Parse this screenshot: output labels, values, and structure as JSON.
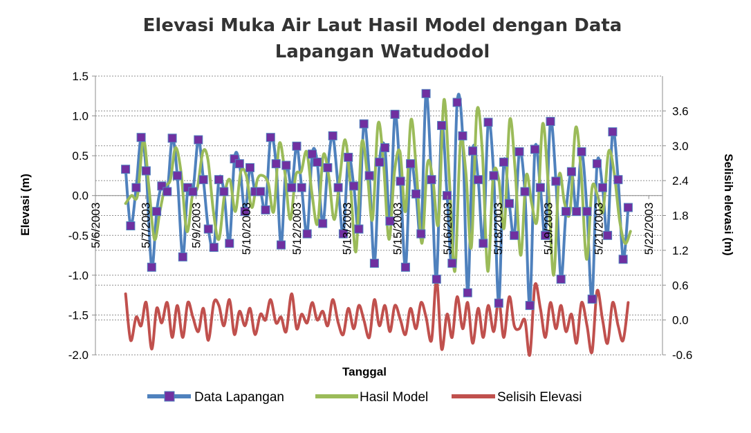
{
  "chart_data": {
    "type": "line",
    "title_lines": [
      "Elevasi Muka Air Laut Hasil Model dengan Data",
      "Lapangan Watudodol"
    ],
    "xlabel": "Tanggal",
    "ylabel": "Elevasi (m)",
    "y2label": "Selisih elevasi (m)",
    "ylim": [
      -2.0,
      1.5
    ],
    "y_ticks": [
      "-2.0",
      "-1.5",
      "-1.0",
      "-0.5",
      "0.0",
      "0.5",
      "1.0",
      "1.5"
    ],
    "y2lim": [
      -0.6,
      4.2
    ],
    "y2_ticks": [
      "-0.6",
      "0.0",
      "0.6",
      "1.2",
      "1.8",
      "2.4",
      "3.0",
      "3.6"
    ],
    "x_tick_labels": [
      "5/6/2003",
      "5/7/2003",
      "5/9/2003",
      "5/10/2003",
      "5/12/2003",
      "5/13/2003",
      "5/15/2003",
      "5/16/2003",
      "5/18/2003",
      "5/19/2003",
      "5/21/2003",
      "5/22/2003"
    ],
    "x_tick_days": [
      6,
      7.1,
      8.2,
      9.3,
      10.4,
      11.5,
      12.6,
      13.7,
      14.8,
      15.9,
      17.0,
      18.1
    ],
    "grid": true,
    "legend_position": "bottom",
    "colors": {
      "data_lapangan": "#4f81bd",
      "marker": "#7030a0",
      "hasil_model": "#9bbb59",
      "selisih": "#c0504d"
    },
    "series": [
      {
        "name": "Data Lapangan",
        "axis": "left",
        "x": [
          6.66,
          6.77,
          6.89,
          7.0,
          7.11,
          7.23,
          7.34,
          7.45,
          7.57,
          7.68,
          7.79,
          7.91,
          8.02,
          8.13,
          8.25,
          8.36,
          8.47,
          8.59,
          8.7,
          8.81,
          8.93,
          9.04,
          9.15,
          9.27,
          9.38,
          9.49,
          9.61,
          9.72,
          9.83,
          9.95,
          10.06,
          10.17,
          10.29,
          10.4,
          10.51,
          10.63,
          10.74,
          10.85,
          10.97,
          11.08,
          11.19,
          11.31,
          11.42,
          11.53,
          11.65,
          11.76,
          11.87,
          11.99,
          12.1,
          12.21,
          12.33,
          12.44,
          12.55,
          12.67,
          12.78,
          12.89,
          13.01,
          13.12,
          13.23,
          13.35,
          13.46,
          13.57,
          13.69,
          13.8,
          13.91,
          14.03,
          14.14,
          14.25,
          14.37,
          14.48,
          14.59,
          14.71,
          14.82,
          14.93,
          15.05,
          15.16,
          15.27,
          15.39,
          15.5,
          15.61,
          15.73,
          15.84,
          15.95,
          16.07,
          16.18,
          16.29,
          16.41,
          16.52,
          16.63,
          16.75,
          16.86,
          16.97,
          17.09,
          17.2,
          17.31,
          17.43,
          17.54,
          17.65
        ],
        "values": [
          0.33,
          -0.38,
          0.1,
          0.73,
          0.31,
          -0.9,
          -0.2,
          0.12,
          0.05,
          0.72,
          0.25,
          -0.77,
          0.1,
          0.05,
          0.7,
          0.2,
          -0.42,
          -0.65,
          0.2,
          0.05,
          -0.6,
          0.46,
          0.4,
          -0.2,
          0.35,
          0.05,
          0.05,
          -0.18,
          0.73,
          0.4,
          -0.62,
          0.38,
          0.1,
          0.62,
          0.1,
          -0.48,
          0.52,
          0.42,
          -0.35,
          0.35,
          0.75,
          0.1,
          -0.48,
          0.48,
          0.12,
          -0.42,
          0.9,
          0.25,
          -0.85,
          0.42,
          0.6,
          -0.32,
          1.02,
          0.18,
          -0.9,
          0.4,
          0.02,
          -0.48,
          1.28,
          0.2,
          -1.05,
          0.88,
          0.0,
          -0.85,
          1.17,
          0.75,
          -1.22,
          0.56,
          0.2,
          -0.6,
          0.92,
          0.25,
          -1.35,
          0.42,
          -0.1,
          -0.5,
          0.55,
          0.05,
          -1.38,
          0.58,
          0.1,
          -0.5,
          0.93,
          0.18,
          -1.05,
          -0.2,
          0.3,
          -0.2,
          0.55,
          -0.2,
          -1.3,
          0.4,
          0.1,
          -0.5,
          0.8,
          0.2,
          -0.8,
          -0.15
        ]
      },
      {
        "name": "Hasil Model",
        "axis": "left",
        "x": [
          6.66,
          6.79,
          6.92,
          7.05,
          7.17,
          7.29,
          7.41,
          7.52,
          7.64,
          7.75,
          7.87,
          8.0,
          8.12,
          8.23,
          8.35,
          8.46,
          8.58,
          8.7,
          8.82,
          8.94,
          9.06,
          9.18,
          9.3,
          9.42,
          9.54,
          9.66,
          9.78,
          9.9,
          10.02,
          10.14,
          10.26,
          10.38,
          10.5,
          10.62,
          10.74,
          10.86,
          10.98,
          11.1,
          11.22,
          11.34,
          11.46,
          11.58,
          11.7,
          11.82,
          11.94,
          12.06,
          12.18,
          12.3,
          12.42,
          12.54,
          12.66,
          12.78,
          12.9,
          13.02,
          13.14,
          13.26,
          13.38,
          13.5,
          13.62,
          13.74,
          13.86,
          13.98,
          14.1,
          14.22,
          14.34,
          14.46,
          14.58,
          14.7,
          14.82,
          14.94,
          15.06,
          15.18,
          15.3,
          15.42,
          15.54,
          15.66,
          15.78,
          15.9,
          16.02,
          16.14,
          16.26,
          16.38,
          16.5,
          16.62,
          16.74,
          16.86,
          16.98,
          17.1,
          17.22,
          17.34,
          17.46,
          17.58,
          17.7
        ],
        "values": [
          -0.1,
          0.0,
          0.0,
          0.7,
          0.1,
          -0.55,
          -0.2,
          0.1,
          0.2,
          0.6,
          0.3,
          -0.45,
          0.0,
          0.1,
          0.55,
          0.45,
          -0.2,
          -0.55,
          0.0,
          0.2,
          -0.2,
          0.3,
          0.25,
          -0.15,
          0.2,
          0.25,
          0.15,
          -0.2,
          0.65,
          0.3,
          -0.3,
          0.25,
          0.3,
          0.55,
          0.0,
          -0.35,
          0.5,
          0.25,
          -0.3,
          0.2,
          0.7,
          0.1,
          -0.7,
          0.65,
          0.3,
          -0.3,
          0.9,
          0.4,
          -0.55,
          0.3,
          0.55,
          -0.2,
          0.95,
          0.3,
          -0.6,
          0.4,
          0.2,
          -0.35,
          1.2,
          0.2,
          -0.95,
          0.65,
          0.3,
          -0.65,
          1.05,
          0.55,
          -0.95,
          0.25,
          0.2,
          -0.4,
          0.95,
          0.3,
          -0.75,
          0.25,
          -0.1,
          -0.3,
          0.9,
          0.15,
          -1.0,
          0.25,
          -0.1,
          -0.2,
          0.85,
          0.3,
          -0.8,
          0.1,
          0.0,
          -0.2,
          0.55,
          0.3,
          -0.3,
          -0.6,
          -0.45
        ]
      },
      {
        "name": "Selisih Elevasi",
        "axis": "right",
        "x": [
          6.66,
          6.77,
          6.89,
          7.0,
          7.11,
          7.23,
          7.34,
          7.45,
          7.57,
          7.68,
          7.79,
          7.91,
          8.02,
          8.13,
          8.25,
          8.36,
          8.47,
          8.59,
          8.7,
          8.81,
          8.93,
          9.04,
          9.15,
          9.27,
          9.38,
          9.49,
          9.61,
          9.72,
          9.83,
          9.95,
          10.06,
          10.17,
          10.29,
          10.4,
          10.51,
          10.63,
          10.74,
          10.85,
          10.97,
          11.08,
          11.19,
          11.31,
          11.42,
          11.53,
          11.65,
          11.76,
          11.87,
          11.99,
          12.1,
          12.21,
          12.33,
          12.44,
          12.55,
          12.67,
          12.78,
          12.89,
          13.01,
          13.12,
          13.23,
          13.35,
          13.46,
          13.57,
          13.69,
          13.8,
          13.91,
          14.03,
          14.14,
          14.25,
          14.37,
          14.48,
          14.59,
          14.71,
          14.82,
          14.93,
          15.05,
          15.16,
          15.27,
          15.39,
          15.5,
          15.61,
          15.73,
          15.84,
          15.95,
          16.07,
          16.18,
          16.29,
          16.41,
          16.52,
          16.63,
          16.75,
          16.86,
          16.97,
          17.09,
          17.2,
          17.31,
          17.43,
          17.54,
          17.65
        ],
        "values": [
          0.45,
          -0.35,
          0.05,
          -0.1,
          0.3,
          -0.5,
          0.2,
          -0.05,
          0.3,
          -0.3,
          0.25,
          -0.3,
          0.3,
          0.05,
          -0.2,
          0.2,
          -0.35,
          0.3,
          0.25,
          -0.1,
          0.35,
          -0.25,
          0.15,
          -0.1,
          0.2,
          -0.25,
          0.1,
          0.0,
          0.35,
          -0.05,
          0.05,
          -0.2,
          0.45,
          -0.15,
          0.1,
          -0.05,
          0.3,
          0.0,
          0.15,
          -0.1,
          0.35,
          -0.05,
          -0.25,
          0.2,
          -0.15,
          0.25,
          0.0,
          -0.3,
          0.35,
          -0.1,
          0.25,
          -0.2,
          0.25,
          0.0,
          -0.25,
          0.2,
          -0.15,
          0.3,
          0.05,
          -0.35,
          0.7,
          -0.5,
          0.1,
          -0.3,
          0.4,
          -0.15,
          0.3,
          -0.4,
          0.2,
          -0.3,
          0.25,
          -0.2,
          0.35,
          -0.3,
          0.4,
          -0.1,
          -0.15,
          0.0,
          -0.6,
          0.6,
          0.2,
          -0.3,
          0.3,
          -0.15,
          0.25,
          -0.2,
          0.1,
          -0.4,
          0.3,
          -0.1,
          -0.55,
          0.5,
          0.0,
          -0.4,
          0.3,
          -0.1,
          -0.35,
          0.3
        ]
      }
    ]
  }
}
